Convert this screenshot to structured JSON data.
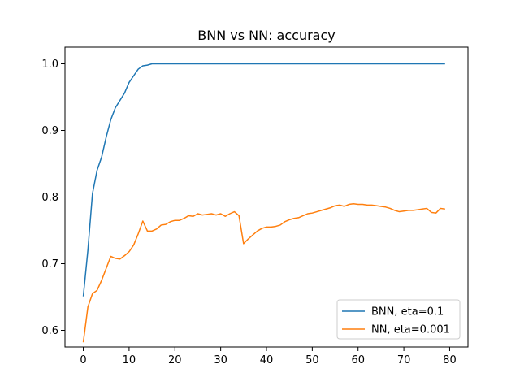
{
  "chart_data": {
    "type": "line",
    "title": "BNN vs NN: accuracy",
    "xlabel": "",
    "ylabel": "",
    "xlim": [
      -4,
      84
    ],
    "ylim": [
      0.575,
      1.025
    ],
    "x_ticks": [
      0,
      10,
      20,
      30,
      40,
      50,
      60,
      70,
      80
    ],
    "y_ticks": [
      0.6,
      0.7,
      0.8,
      0.9,
      1.0
    ],
    "y_tick_labels": [
      "0.6",
      "0.7",
      "0.8",
      "0.9",
      "1.0"
    ],
    "grid": false,
    "legend_position": "lower-right",
    "series": [
      {
        "name": "BNN, eta=0.1",
        "color": "#1f77b4",
        "values": [
          0.651,
          0.72,
          0.805,
          0.84,
          0.86,
          0.89,
          0.916,
          0.934,
          0.945,
          0.956,
          0.972,
          0.982,
          0.992,
          0.997,
          0.998,
          1.0,
          1.0,
          1.0,
          1.0,
          1.0,
          1.0,
          1.0,
          1.0,
          1.0,
          1.0,
          1.0,
          1.0,
          1.0,
          1.0,
          1.0,
          1.0,
          1.0,
          1.0,
          1.0,
          1.0,
          1.0,
          1.0,
          1.0,
          1.0,
          1.0,
          1.0,
          1.0,
          1.0,
          1.0,
          1.0,
          1.0,
          1.0,
          1.0,
          1.0,
          1.0,
          1.0,
          1.0,
          1.0,
          1.0,
          1.0,
          1.0,
          1.0,
          1.0,
          1.0,
          1.0,
          1.0,
          1.0,
          1.0,
          1.0,
          1.0,
          1.0,
          1.0,
          1.0,
          1.0,
          1.0,
          1.0,
          1.0,
          1.0,
          1.0,
          1.0,
          1.0,
          1.0,
          1.0,
          1.0,
          1.0
        ]
      },
      {
        "name": "NN, eta=0.001",
        "color": "#ff7f0e",
        "values": [
          0.582,
          0.635,
          0.655,
          0.66,
          0.675,
          0.693,
          0.711,
          0.708,
          0.707,
          0.712,
          0.718,
          0.728,
          0.745,
          0.764,
          0.749,
          0.749,
          0.752,
          0.758,
          0.759,
          0.763,
          0.765,
          0.765,
          0.768,
          0.772,
          0.771,
          0.775,
          0.773,
          0.774,
          0.775,
          0.773,
          0.775,
          0.771,
          0.775,
          0.778,
          0.772,
          0.73,
          0.737,
          0.743,
          0.749,
          0.753,
          0.755,
          0.755,
          0.756,
          0.758,
          0.763,
          0.766,
          0.768,
          0.769,
          0.772,
          0.775,
          0.776,
          0.778,
          0.78,
          0.782,
          0.784,
          0.787,
          0.788,
          0.786,
          0.789,
          0.79,
          0.789,
          0.789,
          0.788,
          0.788,
          0.787,
          0.786,
          0.785,
          0.783,
          0.78,
          0.778,
          0.779,
          0.78,
          0.78,
          0.781,
          0.782,
          0.783,
          0.777,
          0.776,
          0.783,
          0.782
        ]
      }
    ]
  }
}
